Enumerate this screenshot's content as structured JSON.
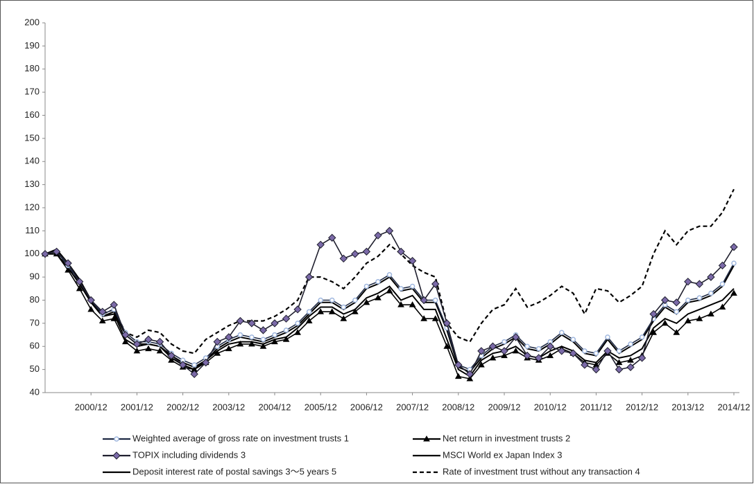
{
  "chart_data": {
    "type": "line",
    "categories": [
      null,
      null,
      null,
      null,
      "2000/12",
      null,
      null,
      null,
      "2001/12",
      null,
      null,
      null,
      "2002/12",
      null,
      null,
      null,
      "2003/12",
      null,
      null,
      null,
      "2004/12",
      null,
      null,
      null,
      "2005/12",
      null,
      null,
      null,
      "2006/12",
      null,
      null,
      null,
      "2007/12",
      null,
      null,
      null,
      "2008/12",
      null,
      null,
      null,
      "2009/12",
      null,
      null,
      null,
      "2010/12",
      null,
      null,
      null,
      "2011/12",
      null,
      null,
      null,
      "2012/12",
      null,
      null,
      null,
      "2013/12",
      null,
      null,
      null,
      "2014/12"
    ],
    "ylim": [
      40,
      200
    ],
    "yticks": [
      40,
      50,
      60,
      70,
      80,
      90,
      100,
      110,
      120,
      130,
      140,
      150,
      160,
      170,
      180,
      190,
      200
    ],
    "grid": false,
    "series": [
      {
        "name": "Weighted average of gross rate on investment trusts 1",
        "color": "#1f2a44",
        "marker": "circle",
        "marker_color": "#9fb7df",
        "dash": false,
        "values": [
          100,
          101,
          95,
          88,
          80,
          74,
          76,
          66,
          62,
          62,
          61,
          57,
          54,
          52,
          55,
          60,
          63,
          65,
          64,
          63,
          65,
          67,
          70,
          75,
          80,
          80,
          77,
          80,
          86,
          88,
          91,
          85,
          86,
          80,
          80,
          68,
          52,
          50,
          56,
          60,
          62,
          65,
          60,
          59,
          62,
          66,
          63,
          58,
          57,
          64,
          58,
          61,
          64,
          72,
          78,
          75,
          80,
          81,
          83,
          87,
          96
        ]
      },
      {
        "name": "Net return in investment trusts 2",
        "color": "#000000",
        "marker": "triangle",
        "marker_color": "#000000",
        "dash": false,
        "values": [
          100,
          100,
          93,
          85,
          76,
          71,
          72,
          62,
          58,
          59,
          58,
          54,
          51,
          50,
          53,
          57,
          59,
          61,
          61,
          60,
          62,
          63,
          66,
          71,
          75,
          75,
          72,
          75,
          79,
          81,
          84,
          78,
          78,
          72,
          72,
          60,
          47,
          46,
          52,
          55,
          56,
          58,
          55,
          54,
          56,
          59,
          57,
          53,
          52,
          57,
          53,
          54,
          56,
          66,
          70,
          66,
          71,
          72,
          74,
          77,
          83
        ]
      },
      {
        "name": "TOPIX including dividends 3",
        "color": "#1f1f2e",
        "marker": "diamond",
        "marker_color": "#7b6aa8",
        "dash": false,
        "values": [
          100,
          101,
          96,
          88,
          80,
          75,
          78,
          65,
          61,
          63,
          62,
          56,
          52,
          48,
          53,
          62,
          64,
          71,
          70,
          67,
          70,
          72,
          76,
          90,
          104,
          107,
          98,
          100,
          101,
          108,
          110,
          101,
          97,
          80,
          87,
          70,
          52,
          48,
          58,
          60,
          58,
          64,
          56,
          55,
          60,
          58,
          57,
          52,
          50,
          58,
          50,
          51,
          55,
          74,
          80,
          79,
          88,
          87,
          90,
          95,
          103
        ]
      },
      {
        "name": "MSCI World ex Japan Index 3",
        "color": "#000000",
        "marker": "none",
        "marker_color": "#000000",
        "dash": false,
        "values": [
          100,
          102,
          96,
          89,
          80,
          73,
          74,
          63,
          60,
          61,
          60,
          55,
          52,
          50,
          54,
          58,
          61,
          62,
          62,
          61,
          63,
          64,
          68,
          73,
          77,
          77,
          74,
          76,
          81,
          83,
          86,
          80,
          82,
          76,
          76,
          63,
          50,
          47,
          54,
          57,
          58,
          60,
          56,
          55,
          58,
          60,
          58,
          54,
          53,
          58,
          55,
          56,
          59,
          68,
          72,
          70,
          74,
          76,
          78,
          80,
          85
        ]
      },
      {
        "name": "Deposit interest rate of postal savings 3～5 years 5",
        "color": "#000000",
        "marker": "none",
        "marker_color": "#000000",
        "dash": false,
        "values": [
          100,
          100,
          94,
          87,
          79,
          73,
          75,
          65,
          61,
          61,
          60,
          56,
          53,
          51,
          54,
          59,
          62,
          64,
          63,
          62,
          64,
          66,
          69,
          74,
          79,
          79,
          76,
          79,
          85,
          87,
          90,
          84,
          85,
          79,
          79,
          67,
          51,
          49,
          55,
          59,
          61,
          64,
          59,
          58,
          61,
          65,
          62,
          57,
          56,
          63,
          57,
          60,
          63,
          71,
          77,
          74,
          79,
          80,
          82,
          86,
          95
        ]
      },
      {
        "name": "Rate of investment trust without any transaction 4",
        "color": "#000000",
        "marker": "none",
        "marker_color": "#000000",
        "dash": true,
        "values": [
          100,
          101,
          95,
          88,
          80,
          74,
          76,
          66,
          64,
          67,
          66,
          61,
          58,
          57,
          63,
          66,
          69,
          71,
          71,
          71,
          73,
          76,
          80,
          90,
          90,
          88,
          85,
          90,
          96,
          99,
          104,
          100,
          95,
          92,
          90,
          70,
          64,
          62,
          70,
          76,
          78,
          85,
          77,
          79,
          82,
          86,
          83,
          74,
          85,
          84,
          79,
          82,
          86,
          100,
          110,
          104,
          110,
          112,
          112,
          118,
          128
        ]
      }
    ]
  }
}
